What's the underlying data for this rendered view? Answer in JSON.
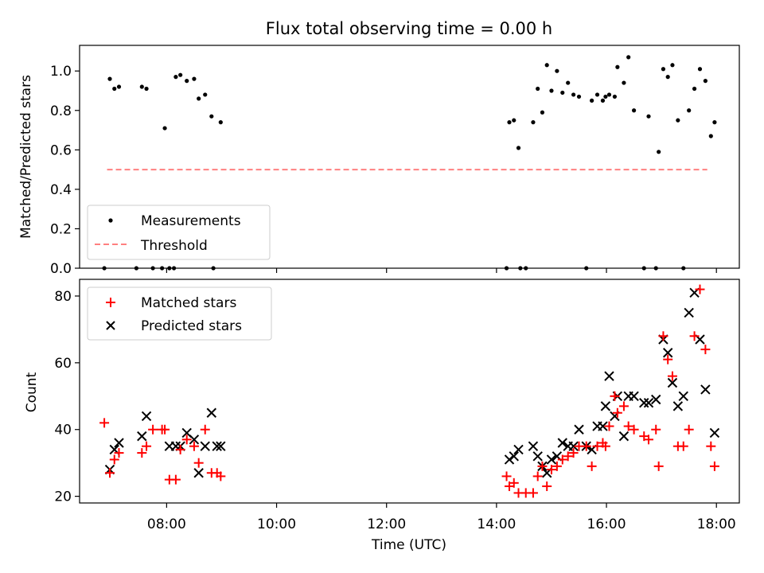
{
  "title": "Flux total observing time = 0.00 h",
  "chart_data": [
    {
      "type": "scatter",
      "ylabel": "Matched/Predicted stars",
      "xlim": [
        "06:25",
        "18:25"
      ],
      "ylim": [
        0,
        1.13
      ],
      "yticks": [
        "0.0",
        "0.2",
        "0.4",
        "0.6",
        "0.8",
        "1.0"
      ],
      "legend_position": "lower-left",
      "legend": {
        "measurements": "Measurements",
        "threshold": "Threshold"
      },
      "threshold": {
        "value": 0.5,
        "x_start": "06:55",
        "x_end": "17:50",
        "color": "#ff8080"
      },
      "series": [
        {
          "name": "Measurements",
          "color": "#000000",
          "points": [
            [
              "06:52",
              0
            ],
            [
              "06:58",
              0.96
            ],
            [
              "07:03",
              0.91
            ],
            [
              "07:08",
              0.92
            ],
            [
              "07:27",
              0
            ],
            [
              "07:33",
              0.92
            ],
            [
              "07:38",
              0.91
            ],
            [
              "07:45",
              0
            ],
            [
              "07:55",
              0
            ],
            [
              "07:58",
              0.71
            ],
            [
              "08:03",
              0
            ],
            [
              "08:08",
              0
            ],
            [
              "08:10",
              0.97
            ],
            [
              "08:15",
              0.98
            ],
            [
              "08:22",
              0.95
            ],
            [
              "08:30",
              0.96
            ],
            [
              "08:35",
              0.86
            ],
            [
              "08:42",
              0.88
            ],
            [
              "08:49",
              0.77
            ],
            [
              "08:51",
              0
            ],
            [
              "08:59",
              0.74
            ],
            [
              "14:11",
              0
            ],
            [
              "14:14",
              0.74
            ],
            [
              "14:19",
              0.75
            ],
            [
              "14:24",
              0.61
            ],
            [
              "14:26",
              0
            ],
            [
              "14:32",
              0
            ],
            [
              "14:40",
              0.74
            ],
            [
              "14:45",
              0.91
            ],
            [
              "14:50",
              0.79
            ],
            [
              "14:55",
              1.03
            ],
            [
              "15:00",
              0.9
            ],
            [
              "15:06",
              1
            ],
            [
              "15:12",
              0.89
            ],
            [
              "15:18",
              0.94
            ],
            [
              "15:24",
              0.88
            ],
            [
              "15:30",
              0.87
            ],
            [
              "15:38",
              0
            ],
            [
              "15:44",
              0.85
            ],
            [
              "15:50",
              0.88
            ],
            [
              "15:56",
              0.85
            ],
            [
              "15:59",
              0.87
            ],
            [
              "16:03",
              0.88
            ],
            [
              "16:09",
              0.87
            ],
            [
              "16:12",
              1.02
            ],
            [
              "16:19",
              0.94
            ],
            [
              "16:24",
              1.07
            ],
            [
              "16:30",
              0.8
            ],
            [
              "16:41",
              0
            ],
            [
              "16:46",
              0.77
            ],
            [
              "16:54",
              0
            ],
            [
              "16:57",
              0.59
            ],
            [
              "17:02",
              1.01
            ],
            [
              "17:07",
              0.97
            ],
            [
              "17:12",
              1.03
            ],
            [
              "17:18",
              0.75
            ],
            [
              "17:24",
              0
            ],
            [
              "17:30",
              0.8
            ],
            [
              "17:36",
              0.91
            ],
            [
              "17:42",
              1.01
            ],
            [
              "17:48",
              0.95
            ],
            [
              "17:54",
              0.67
            ],
            [
              "17:58",
              0.74
            ]
          ]
        }
      ]
    },
    {
      "type": "scatter",
      "xlabel": "Time (UTC)",
      "ylabel": "Count",
      "xlim": [
        "06:25",
        "18:25"
      ],
      "ylim": [
        18,
        85
      ],
      "xticks": [
        "08:00",
        "10:00",
        "12:00",
        "14:00",
        "16:00",
        "18:00"
      ],
      "yticks": [
        "20",
        "40",
        "60",
        "80"
      ],
      "legend_position": "upper-left",
      "series": [
        {
          "name": "Matched stars",
          "marker": "plus",
          "color": "#ff0000",
          "points": [
            [
              "06:52",
              42
            ],
            [
              "06:58",
              27
            ],
            [
              "07:03",
              31
            ],
            [
              "07:08",
              33
            ],
            [
              "07:33",
              33
            ],
            [
              "07:38",
              35
            ],
            [
              "07:45",
              40
            ],
            [
              "07:55",
              40
            ],
            [
              "07:58",
              40
            ],
            [
              "08:03",
              25
            ],
            [
              "08:10",
              25
            ],
            [
              "08:15",
              34
            ],
            [
              "08:22",
              37
            ],
            [
              "08:30",
              35
            ],
            [
              "08:35",
              30
            ],
            [
              "08:42",
              40
            ],
            [
              "08:49",
              27
            ],
            [
              "08:55",
              27
            ],
            [
              "08:59",
              26
            ],
            [
              "14:11",
              26
            ],
            [
              "14:14",
              23
            ],
            [
              "14:19",
              24
            ],
            [
              "14:24",
              21
            ],
            [
              "14:32",
              21
            ],
            [
              "14:40",
              21
            ],
            [
              "14:45",
              26
            ],
            [
              "14:50",
              29
            ],
            [
              "14:55",
              23
            ],
            [
              "15:00",
              28
            ],
            [
              "15:06",
              29
            ],
            [
              "15:12",
              31
            ],
            [
              "15:18",
              32
            ],
            [
              "15:24",
              33
            ],
            [
              "15:30",
              35
            ],
            [
              "15:38",
              35
            ],
            [
              "15:44",
              29
            ],
            [
              "15:50",
              35
            ],
            [
              "15:56",
              36
            ],
            [
              "15:59",
              35
            ],
            [
              "16:03",
              41
            ],
            [
              "16:09",
              50
            ],
            [
              "16:12",
              45
            ],
            [
              "16:19",
              47
            ],
            [
              "16:24",
              41
            ],
            [
              "16:30",
              40
            ],
            [
              "16:41",
              38
            ],
            [
              "16:46",
              37
            ],
            [
              "16:54",
              40
            ],
            [
              "16:57",
              29
            ],
            [
              "17:02",
              68
            ],
            [
              "17:07",
              61
            ],
            [
              "17:12",
              56
            ],
            [
              "17:18",
              35
            ],
            [
              "17:24",
              35
            ],
            [
              "17:30",
              40
            ],
            [
              "17:36",
              68
            ],
            [
              "17:42",
              82
            ],
            [
              "17:48",
              64
            ],
            [
              "17:54",
              35
            ],
            [
              "17:58",
              29
            ]
          ]
        },
        {
          "name": "Predicted stars",
          "marker": "x",
          "color": "#000000",
          "points": [
            [
              "06:58",
              28
            ],
            [
              "07:03",
              34
            ],
            [
              "07:08",
              36
            ],
            [
              "07:33",
              38
            ],
            [
              "07:38",
              44
            ],
            [
              "08:03",
              35
            ],
            [
              "08:10",
              35
            ],
            [
              "08:15",
              35
            ],
            [
              "08:22",
              39
            ],
            [
              "08:30",
              37
            ],
            [
              "08:35",
              27
            ],
            [
              "08:42",
              35
            ],
            [
              "08:49",
              45
            ],
            [
              "08:55",
              35
            ],
            [
              "08:59",
              35
            ],
            [
              "14:14",
              31
            ],
            [
              "14:19",
              32
            ],
            [
              "14:24",
              34
            ],
            [
              "14:40",
              35
            ],
            [
              "14:45",
              32
            ],
            [
              "14:50",
              29
            ],
            [
              "14:55",
              27
            ],
            [
              "15:00",
              31
            ],
            [
              "15:06",
              32
            ],
            [
              "15:12",
              36
            ],
            [
              "15:18",
              35
            ],
            [
              "15:24",
              35
            ],
            [
              "15:30",
              40
            ],
            [
              "15:38",
              35
            ],
            [
              "15:44",
              34
            ],
            [
              "15:50",
              41
            ],
            [
              "15:56",
              41
            ],
            [
              "15:59",
              47
            ],
            [
              "16:03",
              56
            ],
            [
              "16:09",
              44
            ],
            [
              "16:12",
              50
            ],
            [
              "16:19",
              38
            ],
            [
              "16:24",
              50
            ],
            [
              "16:30",
              50
            ],
            [
              "16:41",
              48
            ],
            [
              "16:46",
              48
            ],
            [
              "16:54",
              49
            ],
            [
              "17:02",
              67
            ],
            [
              "17:07",
              63
            ],
            [
              "17:12",
              54
            ],
            [
              "17:18",
              47
            ],
            [
              "17:24",
              50
            ],
            [
              "17:30",
              75
            ],
            [
              "17:36",
              81
            ],
            [
              "17:42",
              67
            ],
            [
              "17:48",
              52
            ],
            [
              "17:58",
              39
            ]
          ]
        }
      ]
    }
  ]
}
